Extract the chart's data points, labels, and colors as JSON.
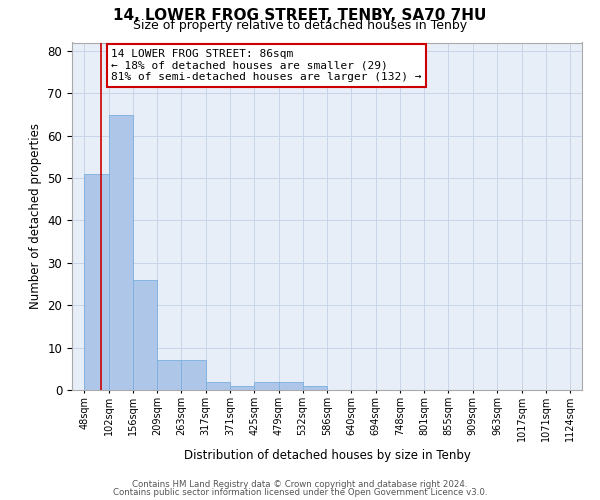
{
  "title": "14, LOWER FROG STREET, TENBY, SA70 7HU",
  "subtitle": "Size of property relative to detached houses in Tenby",
  "xlabel": "Distribution of detached houses by size in Tenby",
  "ylabel": "Number of detached properties",
  "bar_values": [
    51,
    65,
    26,
    7,
    7,
    2,
    1,
    2,
    2,
    1,
    0,
    0,
    0,
    0,
    0,
    0,
    0,
    0,
    0,
    0
  ],
  "bin_edges": [
    48,
    102,
    156,
    209,
    263,
    317,
    371,
    425,
    479,
    532,
    586,
    640,
    694,
    748,
    801,
    855,
    909,
    963,
    1017,
    1071,
    1124
  ],
  "tick_labels": [
    "48sqm",
    "102sqm",
    "156sqm",
    "209sqm",
    "263sqm",
    "317sqm",
    "371sqm",
    "425sqm",
    "479sqm",
    "532sqm",
    "586sqm",
    "640sqm",
    "694sqm",
    "748sqm",
    "801sqm",
    "855sqm",
    "909sqm",
    "963sqm",
    "1017sqm",
    "1071sqm",
    "1124sqm"
  ],
  "bar_color": "#aec6e8",
  "bar_edgecolor": "#7aafe0",
  "grid_color": "#c8d4e8",
  "bg_color": "#e8eef8",
  "red_line_x": 86,
  "ylim": [
    0,
    82
  ],
  "yticks": [
    0,
    10,
    20,
    30,
    40,
    50,
    60,
    70,
    80
  ],
  "annotation_text": "14 LOWER FROG STREET: 86sqm\n← 18% of detached houses are smaller (29)\n81% of semi-detached houses are larger (132) →",
  "annotation_box_color": "#ffffff",
  "annotation_edge_color": "#cc0000",
  "footnote1": "Contains HM Land Registry data © Crown copyright and database right 2024.",
  "footnote2": "Contains public sector information licensed under the Open Government Licence v3.0."
}
